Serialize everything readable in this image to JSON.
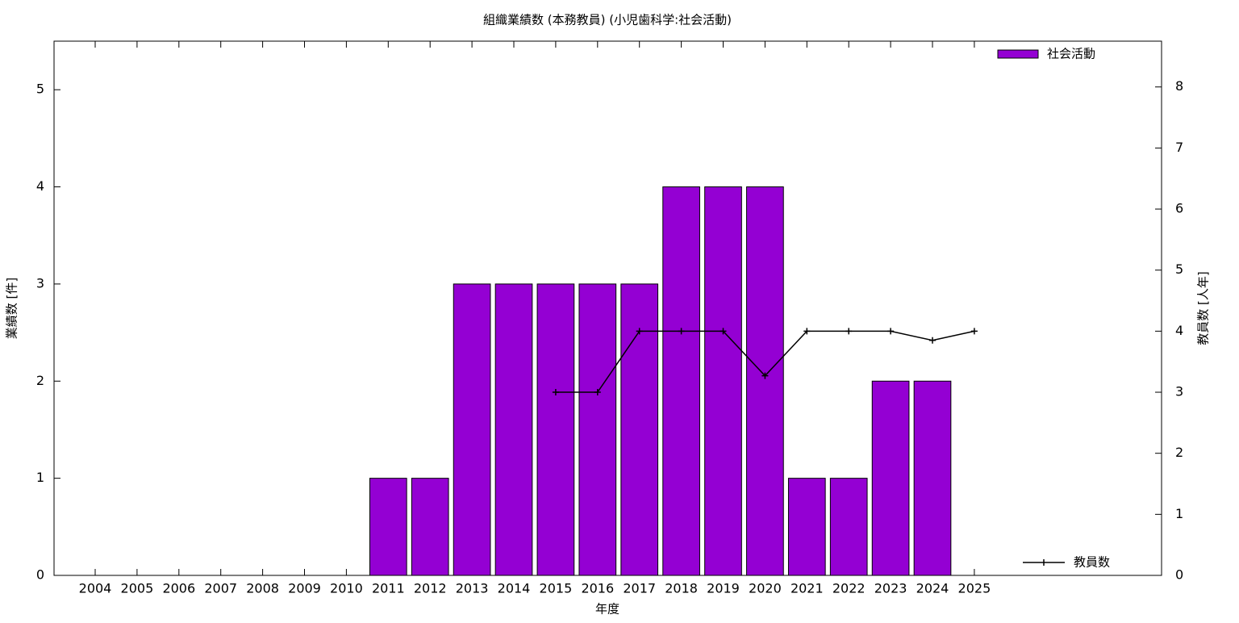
{
  "chart_data": {
    "type": "bar",
    "title": "組織業績数 (本務教員) (小児歯科学:社会活動)",
    "x_label": "年度",
    "y_label": "業績数 [件]",
    "y2_label": "教員数 [人年]",
    "categories": [
      "2004",
      "2005",
      "2006",
      "2007",
      "2008",
      "2009",
      "2010",
      "2011",
      "2012",
      "2013",
      "2014",
      "2015",
      "2016",
      "2017",
      "2018",
      "2019",
      "2020",
      "2021",
      "2022",
      "2023",
      "2024",
      "2025"
    ],
    "series": [
      {
        "name": "社会活動",
        "type": "bar",
        "color": "#9400d3",
        "values": [
          0,
          0,
          0,
          0,
          0,
          0,
          0,
          1,
          1,
          3,
          3,
          3,
          3,
          3,
          4,
          4,
          4,
          1,
          1,
          2,
          2,
          null
        ]
      },
      {
        "name": "教員数",
        "type": "line",
        "axis": "y2",
        "color": "#000000",
        "values": [
          null,
          null,
          null,
          null,
          null,
          null,
          null,
          null,
          null,
          null,
          null,
          3,
          3,
          4,
          4,
          4,
          3.27,
          4,
          4,
          4,
          3.85,
          4
        ]
      }
    ],
    "ylim": [
      0,
      5.5
    ],
    "yticks": [
      0,
      1,
      2,
      3,
      4,
      5
    ],
    "y2lim": [
      0,
      8.75
    ],
    "y2ticks": [
      0,
      1,
      2,
      3,
      4,
      5,
      6,
      7,
      8
    ]
  }
}
